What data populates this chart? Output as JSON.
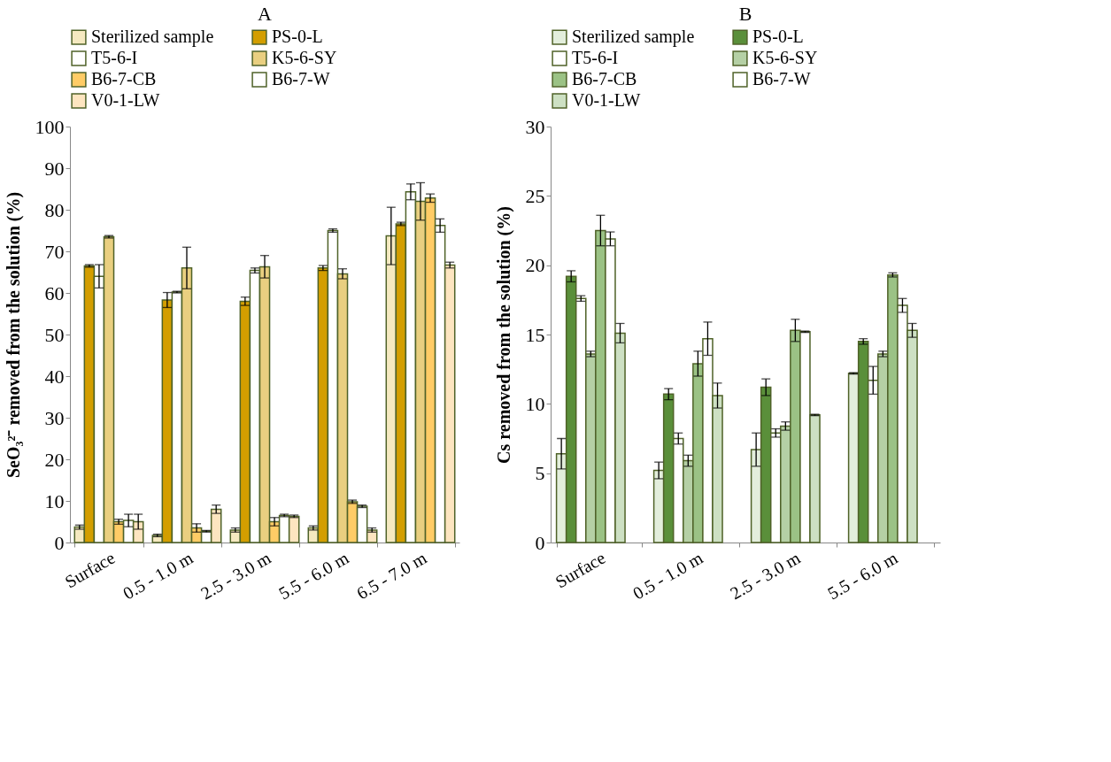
{
  "chart_data": [
    {
      "type": "bar",
      "title": "A",
      "ylabel": "SeO₃²⁻ removed from the solution (%)",
      "categories": [
        "Surface",
        "0.5 - 1.0 m",
        "2.5 - 3.0 m",
        "5.5 - 6.0 m",
        "6.5 - 7.0 m"
      ],
      "series": [
        {
          "name": "Sterilized sample",
          "color": "#f5e9c0",
          "values": [
            3.7,
            1.7,
            3.0,
            3.5,
            73.7
          ],
          "errors": [
            0.5,
            0.3,
            0.5,
            0.5,
            6.9
          ]
        },
        {
          "name": "PS-0-L",
          "color": "#d39e00",
          "values": [
            66.5,
            58.3,
            58.0,
            66.0,
            76.6
          ],
          "errors": [
            0.3,
            1.8,
            1.0,
            0.6,
            0.4
          ]
        },
        {
          "name": "T5-6-I",
          "color": "#ffffff",
          "values": [
            64.0,
            60.2,
            65.4,
            75.0,
            84.3
          ],
          "errors": [
            2.8,
            0.2,
            0.6,
            0.4,
            1.9
          ]
        },
        {
          "name": "K5-6-SY",
          "color": "#e9cf80",
          "values": [
            73.5,
            66.0,
            66.3,
            64.6,
            82.0
          ],
          "errors": [
            0.3,
            5.0,
            2.7,
            1.2,
            4.5
          ]
        },
        {
          "name": "B6-7-CB",
          "color": "#ffcc66",
          "values": [
            5.0,
            3.5,
            5.0,
            9.8,
            82.8
          ],
          "errors": [
            0.6,
            1.0,
            1.0,
            0.4,
            1.0
          ]
        },
        {
          "name": "B6-7-W",
          "color": "#ffffff",
          "values": [
            5.3,
            2.7,
            6.5,
            8.7,
            76.2
          ],
          "errors": [
            1.5,
            0.2,
            0.3,
            0.3,
            1.6
          ]
        },
        {
          "name": "V0-1-LW",
          "color": "#fde5c0",
          "values": [
            5.0,
            8.0,
            6.3,
            3.0,
            66.7
          ],
          "errors": [
            1.8,
            1.0,
            0.3,
            0.5,
            0.7
          ]
        }
      ],
      "ylim": [
        0,
        100
      ],
      "yticks": [
        0,
        10,
        20,
        30,
        40,
        50,
        60,
        70,
        80,
        90,
        100
      ],
      "legend": "top"
    },
    {
      "type": "bar",
      "title": "B",
      "ylabel": "Cs removed from the solution (%)",
      "categories": [
        "Surface",
        "0.5 - 1.0 m",
        "2.5 - 3.0 m",
        "5.5 - 6.0 m"
      ],
      "series": [
        {
          "name": "Sterilized sample",
          "color": "#e3eedc",
          "values": [
            6.4,
            5.2,
            6.7,
            12.2
          ],
          "errors": [
            1.1,
            0.6,
            1.2,
            0.05
          ]
        },
        {
          "name": "PS-0-L",
          "color": "#5a8f3a",
          "values": [
            19.2,
            10.7,
            11.2,
            14.5
          ],
          "errors": [
            0.4,
            0.4,
            0.6,
            0.2
          ]
        },
        {
          "name": "T5-6-I",
          "color": "#ffffff",
          "values": [
            17.6,
            7.5,
            7.9,
            11.7
          ],
          "errors": [
            0.2,
            0.4,
            0.3,
            1.0
          ]
        },
        {
          "name": "K5-6-SY",
          "color": "#b5d0a5",
          "values": [
            13.6,
            5.9,
            8.4,
            13.6
          ],
          "errors": [
            0.2,
            0.4,
            0.3,
            0.2
          ]
        },
        {
          "name": "B6-7-CB",
          "color": "#9bc285",
          "values": [
            22.5,
            12.9,
            15.3,
            19.3
          ],
          "errors": [
            1.1,
            0.9,
            0.8,
            0.15
          ]
        },
        {
          "name": "B6-7-W",
          "color": "#ffffff",
          "values": [
            21.9,
            14.7,
            15.2,
            17.1
          ],
          "errors": [
            0.5,
            1.2,
            0.05,
            0.5
          ]
        },
        {
          "name": "V0-1-LW",
          "color": "#cde0c3",
          "values": [
            15.1,
            10.6,
            9.2,
            15.3
          ],
          "errors": [
            0.7,
            0.9,
            0.05,
            0.5
          ]
        }
      ],
      "ylim": [
        0,
        30
      ],
      "yticks": [
        0,
        5,
        10,
        15,
        20,
        25,
        30
      ],
      "legend": "top"
    }
  ]
}
